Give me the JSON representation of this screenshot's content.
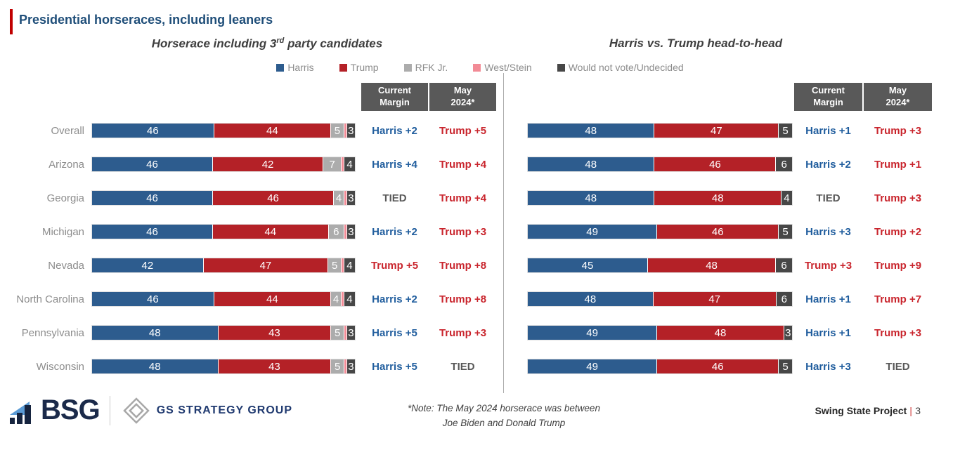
{
  "header": {
    "title": "Presidential horseraces, including leaners"
  },
  "subtitle_left": {
    "pre": "Horserace including 3",
    "sup": "rd",
    "post": " party candidates"
  },
  "subtitle_right": "Harris vs. Trump head-to-head",
  "legend": [
    {
      "label": "Harris",
      "color": "#2D5C8E"
    },
    {
      "label": "Trump",
      "color": "#B42127"
    },
    {
      "label": "RFK Jr.",
      "color": "#ACACAC"
    },
    {
      "label": "West/Stein",
      "color": "#F28B96"
    },
    {
      "label": "Would not vote/Undecided",
      "color": "#474747"
    }
  ],
  "columns": {
    "current_line1": "Current",
    "current_line2": "Margin",
    "may_line1": "May",
    "may_line2": "2024*"
  },
  "margin_colors": {
    "Harris": "#215E9E",
    "Trump": "#C9252D",
    "TIED": "#595959"
  },
  "chart_data": [
    {
      "type": "bar",
      "stacked": true,
      "orientation": "horizontal",
      "title": "Horserace including 3rd party candidates",
      "categories": [
        "Overall",
        "Arizona",
        "Georgia",
        "Michigan",
        "Nevada",
        "North Carolina",
        "Pennsylvania",
        "Wisconsin"
      ],
      "series": [
        {
          "name": "Harris",
          "values": [
            46,
            46,
            46,
            46,
            42,
            46,
            48,
            48
          ]
        },
        {
          "name": "Trump",
          "values": [
            44,
            42,
            46,
            44,
            47,
            44,
            43,
            43
          ]
        },
        {
          "name": "RFK Jr.",
          "values": [
            5,
            7,
            4,
            6,
            5,
            4,
            5,
            5
          ]
        },
        {
          "name": "West/Stein",
          "values": [
            1,
            1,
            1,
            1,
            1,
            1,
            1,
            1
          ]
        },
        {
          "name": "Would not vote/Undecided",
          "values": [
            3,
            4,
            3,
            3,
            4,
            4,
            3,
            3
          ]
        }
      ],
      "current_margin": [
        "Harris +2",
        "Harris +4",
        "TIED",
        "Harris +2",
        "Trump +5",
        "Harris +2",
        "Harris +5",
        "Harris +5"
      ],
      "may_2024": [
        "Trump +5",
        "Trump +4",
        "Trump +4",
        "Trump +3",
        "Trump +8",
        "Trump +8",
        "Trump +3",
        "TIED"
      ]
    },
    {
      "type": "bar",
      "stacked": true,
      "orientation": "horizontal",
      "title": "Harris vs. Trump head-to-head",
      "categories": [
        "Overall",
        "Arizona",
        "Georgia",
        "Michigan",
        "Nevada",
        "North Carolina",
        "Pennsylvania",
        "Wisconsin"
      ],
      "series": [
        {
          "name": "Harris",
          "values": [
            48,
            48,
            48,
            49,
            45,
            48,
            49,
            49
          ]
        },
        {
          "name": "Trump",
          "values": [
            47,
            46,
            48,
            46,
            48,
            47,
            48,
            46
          ]
        },
        {
          "name": "Would not vote/Undecided",
          "values": [
            5,
            6,
            4,
            5,
            6,
            6,
            3,
            5
          ]
        }
      ],
      "current_margin": [
        "Harris +1",
        "Harris +2",
        "TIED",
        "Harris +3",
        "Trump +3",
        "Harris +1",
        "Harris +1",
        "Harris +3"
      ],
      "may_2024": [
        "Trump +3",
        "Trump +1",
        "Trump +3",
        "Trump +2",
        "Trump +9",
        "Trump +7",
        "Trump +3",
        "TIED"
      ]
    }
  ],
  "footer": {
    "bsg_logo": "BSG",
    "gs_logo": "GS STRATEGY GROUP",
    "note_line1": "*Note: The May 2024 horserace was between",
    "note_line2": "Joe Biden and Donald Trump",
    "project": "Swing State Project",
    "pipe": "|",
    "page_number": "3"
  }
}
